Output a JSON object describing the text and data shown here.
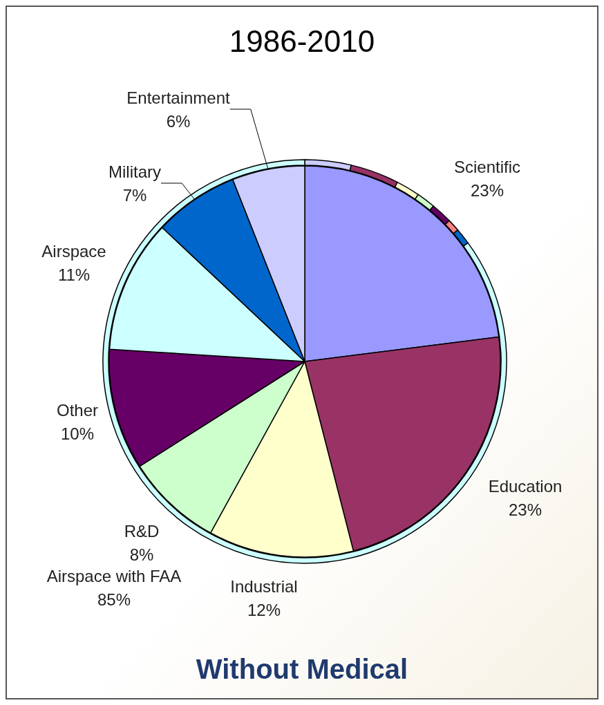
{
  "chart_data": [
    {
      "type": "pie",
      "title": "1986-2010",
      "annotations": [
        "Without Medical"
      ],
      "categories": [
        "Scientific",
        "Education",
        "Industrial",
        "R&D",
        "Other",
        "Airspace",
        "Military",
        "Entertainment"
      ],
      "values": [
        23,
        23,
        12,
        8,
        10,
        11,
        7,
        6
      ],
      "value_labels": [
        "23%",
        "23%",
        "12%",
        "8%",
        "10%",
        "11%",
        "7%",
        "6%"
      ],
      "colors": [
        "#9999ff",
        "#993366",
        "#ffffcc",
        "#ccffcc",
        "#660066",
        "#ccffff",
        "#0066cc",
        "#ccccff"
      ]
    },
    {
      "type": "donut",
      "categories": [
        null,
        null,
        null,
        null,
        null,
        null,
        null,
        "Airspace with FAA"
      ],
      "values": [
        3.7,
        3.9,
        1.9,
        1.5,
        1.7,
        1.0,
        1.3,
        85
      ],
      "value_labels": [
        null,
        null,
        null,
        null,
        null,
        null,
        null,
        "85%"
      ],
      "colors": [
        "#ccccff",
        "#993366",
        "#ffffcc",
        "#ccffcc",
        "#660066",
        "#ff8080",
        "#0066cc",
        "#ccffff"
      ]
    }
  ]
}
